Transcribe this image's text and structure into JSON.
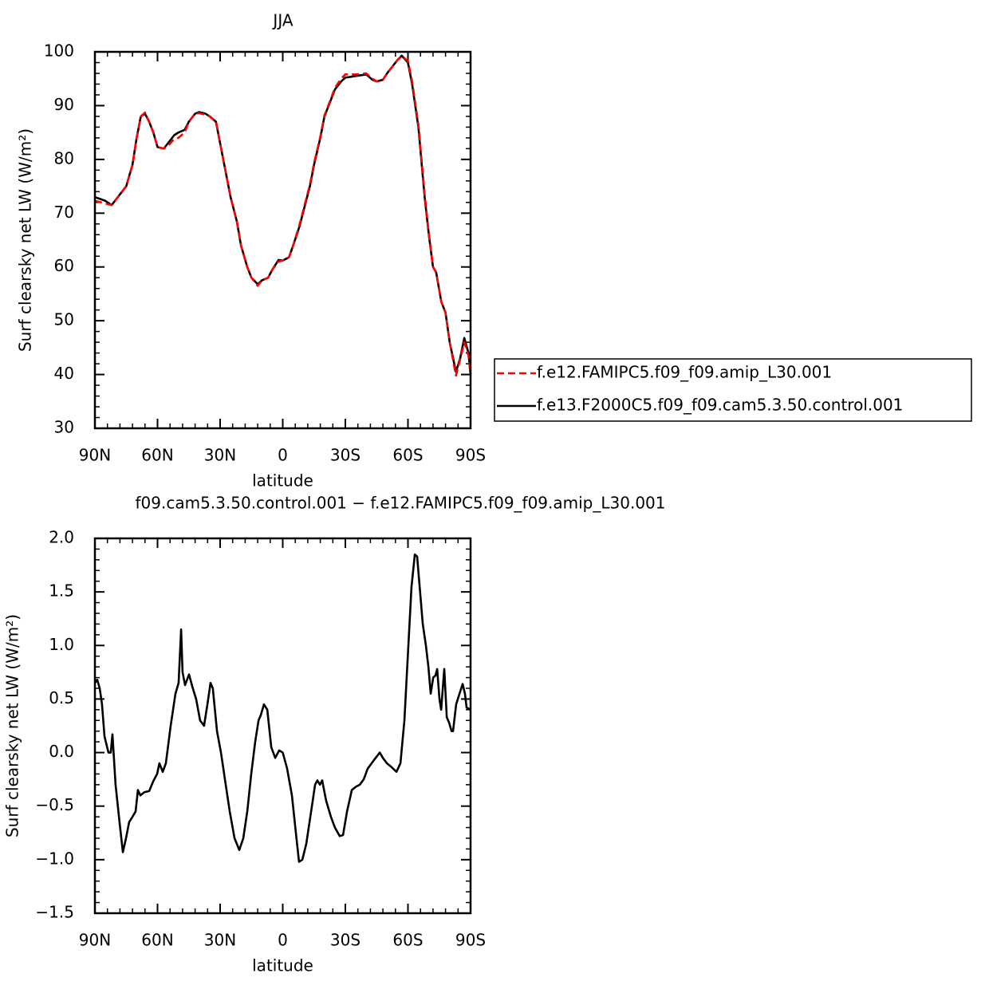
{
  "chart_data": [
    {
      "type": "line",
      "title": "JJA",
      "xlabel": "latitude",
      "ylabel": "Surf clearsky net LW (W/m²)",
      "x": [
        90,
        85,
        82,
        80,
        75,
        72,
        70,
        68,
        66,
        64,
        62,
        60,
        57,
        55,
        52,
        50,
        47,
        45,
        42,
        40,
        37,
        35,
        32,
        30,
        27,
        25,
        22,
        20,
        17,
        15,
        12,
        10,
        7,
        5,
        2,
        0,
        -3,
        -5,
        -8,
        -10,
        -13,
        -15,
        -18,
        -20,
        -23,
        -25,
        -28,
        -30,
        -35,
        -40,
        -43,
        -45,
        -48,
        -50,
        -53,
        -55,
        -57,
        -60,
        -62,
        -65,
        -68,
        -70,
        -72,
        -73.5,
        -76,
        -78,
        -80,
        -83,
        -85,
        -87,
        -89,
        -90
      ],
      "series": [
        {
          "name": "f.e12.FAMIPC5.f09_f09.amip_L30.001",
          "color": "#ff0000",
          "linestyle": "dashed",
          "values": [
            72.3,
            71.8,
            71.5,
            72.5,
            75,
            79,
            84,
            88,
            88.7,
            87,
            85,
            82.3,
            82,
            82.5,
            83.8,
            84,
            85,
            87,
            88.5,
            88.6,
            88.3,
            88,
            87,
            83,
            77,
            73,
            68.5,
            64,
            60,
            58,
            56.5,
            57.5,
            58,
            59.5,
            61,
            61.2,
            61.8,
            64,
            67.8,
            70.8,
            75.3,
            79.3,
            84.2,
            88.2,
            91.2,
            93.3,
            95,
            95.8,
            95.8,
            96,
            95,
            94.5,
            94.8,
            96,
            97.5,
            98.5,
            99.2,
            98.3,
            94.5,
            86.5,
            73.5,
            66.2,
            60,
            59,
            53.5,
            51.5,
            46,
            39.8,
            42.8,
            46,
            43.5,
            40
          ]
        },
        {
          "name": "f.e13.F2000C5.f09_f09.cam5.3.50.control.001",
          "color": "#000000",
          "linestyle": "solid",
          "values": [
            73,
            72.3,
            71.5,
            72.5,
            75,
            79,
            84,
            88,
            88.5,
            87,
            85,
            82.3,
            82,
            83,
            84.5,
            85,
            85.5,
            87,
            88.5,
            88.8,
            88.5,
            88,
            87,
            83,
            77,
            73,
            68.5,
            64,
            60,
            58,
            56.8,
            57.5,
            58,
            59.5,
            61.3,
            61.2,
            61.8,
            64,
            67.5,
            70.5,
            75,
            79,
            84,
            88,
            91,
            93,
            94.5,
            95.2,
            95.5,
            95.8,
            94.8,
            94.5,
            94.8,
            96,
            97.5,
            98.5,
            99.3,
            98,
            94,
            86,
            73,
            66,
            60,
            59,
            53.5,
            51.5,
            46,
            40.5,
            43,
            46.8,
            44,
            40
          ]
        }
      ],
      "xlim": [
        90,
        -90
      ],
      "xticks": [
        {
          "value": 90,
          "label": "90N"
        },
        {
          "value": 60,
          "label": "60N"
        },
        {
          "value": 30,
          "label": "30N"
        },
        0,
        {
          "value": -30,
          "label": "30S"
        },
        {
          "value": -60,
          "label": "60S"
        },
        {
          "value": -90,
          "label": "90S"
        }
      ],
      "ylim": [
        30,
        100
      ],
      "yticks": [
        30,
        40,
        50,
        60,
        70,
        80,
        90,
        100
      ],
      "legend": "right"
    },
    {
      "type": "line",
      "title": "f09.cam5.3.50.control.001 − f.e12.FAMIPC5.f09_f09.amip_L30.001",
      "xlabel": "latitude",
      "ylabel": "Surf clearsky net LW (W/m²)",
      "x": [
        90,
        88.9,
        87.7,
        86.6,
        85.4,
        83.5,
        82.4,
        81.6,
        80.1,
        78.2,
        76.6,
        75.1,
        73.6,
        72,
        70.5,
        69.4,
        68.2,
        66.3,
        64,
        62.1,
        60.2,
        59.1,
        57.5,
        56,
        53.7,
        51.4,
        49.9,
        48.7,
        48,
        46.8,
        44.9,
        43.4,
        41.5,
        39.6,
        37.7,
        36.1,
        34.6,
        33.5,
        31.5,
        29.6,
        27.7,
        25.4,
        23.1,
        20.8,
        18.9,
        17,
        15.1,
        13.2,
        11.6,
        10.5,
        9,
        7.4,
        5.5,
        3.6,
        1.7,
        0,
        -2.1,
        -4.4,
        -6.3,
        -7.8,
        -9.4,
        -11.3,
        -13.6,
        -15.5,
        -16.6,
        -17.8,
        -18.9,
        -20.8,
        -23.1,
        -25,
        -27.3,
        -28.9,
        -30.8,
        -33.1,
        -35,
        -36.9,
        -38.8,
        -40.7,
        -42.6,
        -44.5,
        -46.5,
        -48,
        -49.9,
        -51.8,
        -54.5,
        -56.4,
        -58.3,
        -60.2,
        -61.7,
        -63.3,
        -64.4,
        -65.6,
        -67.1,
        -68.6,
        -69.8,
        -70.9,
        -72.1,
        -73.2,
        -74,
        -75.1,
        -75.9,
        -77.4,
        -78.6,
        -79.7,
        -80.9,
        -81.6,
        -83.1,
        -84.7,
        -86.2,
        -87.3,
        -88.1,
        -90
      ],
      "series": [
        {
          "color": "#000000",
          "linestyle": "solid",
          "values": [
            0.65,
            0.68,
            0.6,
            0.45,
            0.15,
            0,
            0,
            0.17,
            -0.3,
            -0.65,
            -0.93,
            -0.8,
            -0.65,
            -0.6,
            -0.55,
            -0.35,
            -0.4,
            -0.37,
            -0.36,
            -0.27,
            -0.2,
            -0.1,
            -0.18,
            -0.1,
            0.25,
            0.55,
            0.65,
            1.15,
            0.75,
            0.63,
            0.73,
            0.62,
            0.5,
            0.3,
            0.25,
            0.45,
            0.65,
            0.6,
            0.2,
            0,
            -0.25,
            -0.55,
            -0.8,
            -0.91,
            -0.8,
            -0.55,
            -0.2,
            0.1,
            0.3,
            0.35,
            0.45,
            0.4,
            0.05,
            -0.05,
            0.02,
            0,
            -0.15,
            -0.4,
            -0.75,
            -1.02,
            -1,
            -0.85,
            -0.55,
            -0.3,
            -0.26,
            -0.3,
            -0.26,
            -0.45,
            -0.6,
            -0.7,
            -0.78,
            -0.77,
            -0.55,
            -0.35,
            -0.32,
            -0.3,
            -0.25,
            -0.15,
            -0.1,
            -0.05,
            0,
            -0.05,
            -0.1,
            -0.13,
            -0.18,
            -0.1,
            0.3,
            1,
            1.55,
            1.85,
            1.83,
            1.55,
            1.2,
            1,
            0.8,
            0.55,
            0.7,
            0.72,
            0.78,
            0.5,
            0.4,
            0.78,
            0.33,
            0.28,
            0.2,
            0.2,
            0.45,
            0.55,
            0.64,
            0.55,
            0.42,
            0.4
          ]
        }
      ],
      "xlim": [
        90,
        -90
      ],
      "xticks": [
        {
          "value": 90,
          "label": "90N"
        },
        {
          "value": 60,
          "label": "60N"
        },
        {
          "value": 30,
          "label": "30N"
        },
        0,
        {
          "value": -30,
          "label": "30S"
        },
        {
          "value": -60,
          "label": "60S"
        },
        {
          "value": -90,
          "label": "90S"
        }
      ],
      "ylim": [
        -1.5,
        2
      ],
      "yticks": [
        {
          "value": -1.5,
          "label": "−1.5"
        },
        {
          "value": -1,
          "label": "−1.0"
        },
        {
          "value": -0.5,
          "label": "−0.5"
        },
        {
          "value": 0,
          "label": "0.0"
        },
        0.5,
        {
          "value": 1,
          "label": "1.0"
        },
        1.5,
        {
          "value": 2,
          "label": "2.0"
        }
      ]
    }
  ]
}
